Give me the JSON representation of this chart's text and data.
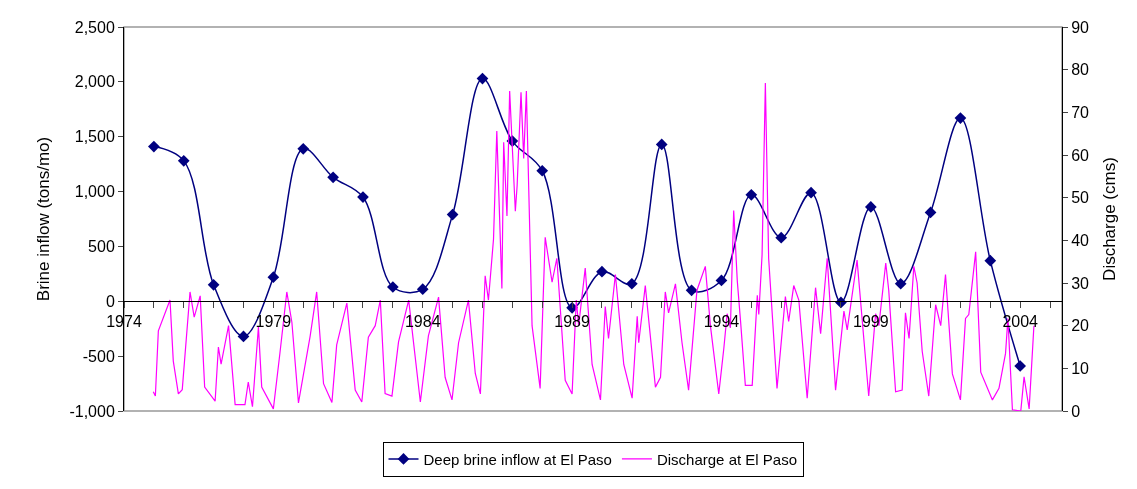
{
  "chart_data": {
    "type": "line",
    "ylabel": "Brine inflow (tons/mo)",
    "y2label": "Discharge (cms)",
    "xlim": [
      1974,
      2005.4
    ],
    "xticks": [
      1974,
      {
        "value": 1975,
        "label": null
      },
      {
        "value": 1976,
        "label": null
      },
      {
        "value": 1977,
        "label": null
      },
      {
        "value": 1978,
        "label": null
      },
      1979,
      {
        "value": 1980,
        "label": null
      },
      {
        "value": 1981,
        "label": null
      },
      {
        "value": 1982,
        "label": null
      },
      {
        "value": 1983,
        "label": null
      },
      1984,
      {
        "value": 1985,
        "label": null
      },
      {
        "value": 1986,
        "label": null
      },
      {
        "value": 1987,
        "label": null
      },
      {
        "value": 1988,
        "label": null
      },
      1989,
      {
        "value": 1990,
        "label": null
      },
      {
        "value": 1991,
        "label": null
      },
      {
        "value": 1992,
        "label": null
      },
      {
        "value": 1993,
        "label": null
      },
      1994,
      {
        "value": 1995,
        "label": null
      },
      {
        "value": 1996,
        "label": null
      },
      {
        "value": 1997,
        "label": null
      },
      {
        "value": 1998,
        "label": null
      },
      1999,
      {
        "value": 2000,
        "label": null
      },
      {
        "value": 2001,
        "label": null
      },
      {
        "value": 2002,
        "label": null
      },
      {
        "value": 2003,
        "label": null
      },
      2004,
      {
        "value": 2005,
        "label": null
      }
    ],
    "ylim": [
      -1000,
      2500
    ],
    "yticks": [
      {
        "value": -1000,
        "label": "-1,000"
      },
      {
        "value": -500,
        "label": "-500"
      },
      0,
      500,
      {
        "value": 1000,
        "label": "1,000"
      },
      {
        "value": 1500,
        "label": "1,500"
      },
      {
        "value": 2000,
        "label": "2,000"
      },
      {
        "value": 2500,
        "label": "2,500"
      }
    ],
    "y2lim": [
      0,
      90
    ],
    "y2ticks": [
      0,
      10,
      20,
      30,
      40,
      50,
      60,
      70,
      80,
      90
    ],
    "grid": false,
    "legend": "bottom",
    "series": [
      {
        "name": "Deep brine inflow at El Paso",
        "color": "#000080",
        "marker": "diamond",
        "x": [
          1975,
          1976,
          1977,
          1978,
          1979,
          1980,
          1981,
          1982,
          1983,
          1984,
          1985,
          1986,
          1987,
          1988,
          1989,
          1990,
          1991,
          1992,
          1993,
          1994,
          1995,
          1996,
          1997,
          1998,
          1999,
          2000,
          2001,
          2002,
          2003,
          2004
        ],
        "values": [
          1410,
          1280,
          150,
          -320,
          220,
          1390,
          1130,
          950,
          130,
          110,
          790,
          2030,
          1460,
          1190,
          -60,
          270,
          160,
          1430,
          100,
          190,
          970,
          580,
          990,
          -10,
          860,
          160,
          810,
          1670,
          370,
          -590
        ]
      },
      {
        "name": "Discharge at El Paso",
        "color": "#ff00ff",
        "marker": "none",
        "axis": "y2",
        "x": [
          1974.98,
          1975.05,
          1975.15,
          1975.54,
          1975.65,
          1975.82,
          1975.95,
          1976.21,
          1976.35,
          1976.55,
          1976.7,
          1977.05,
          1977.16,
          1977.25,
          1977.5,
          1977.72,
          1978.05,
          1978.16,
          1978.3,
          1978.5,
          1978.61,
          1979.0,
          1979.22,
          1979.45,
          1979.62,
          1979.84,
          1980.23,
          1980.45,
          1980.68,
          1980.96,
          1981.12,
          1981.46,
          1981.74,
          1981.96,
          1982.18,
          1982.41,
          1982.58,
          1982.74,
          1982.97,
          1983.19,
          1983.53,
          1983.92,
          1984.19,
          1984.53,
          1984.75,
          1984.98,
          1985.2,
          1985.53,
          1985.76,
          1985.93,
          1986.09,
          1986.2,
          1986.37,
          1986.48,
          1986.65,
          1986.71,
          1986.82,
          1986.91,
          1987.1,
          1987.16,
          1987.29,
          1987.38,
          1987.47,
          1987.66,
          1987.93,
          1988.1,
          1988.33,
          1988.49,
          1988.77,
          1989.0,
          1989.14,
          1989.22,
          1989.44,
          1989.67,
          1989.95,
          1990.11,
          1990.22,
          1990.45,
          1990.73,
          1991.01,
          1991.18,
          1991.23,
          1991.45,
          1991.79,
          1991.96,
          1992.12,
          1992.23,
          1992.46,
          1992.68,
          1992.9,
          1993.18,
          1993.46,
          1993.63,
          1993.91,
          1994.08,
          1994.19,
          1994.3,
          1994.41,
          1994.53,
          1994.64,
          1994.8,
          1995.03,
          1995.2,
          1995.25,
          1995.36,
          1995.47,
          1995.58,
          1995.86,
          1996.14,
          1996.25,
          1996.42,
          1996.59,
          1996.87,
          1997.15,
          1997.32,
          1997.54,
          1997.82,
          1998.1,
          1998.21,
          1998.54,
          1998.93,
          1999.16,
          1999.27,
          1999.5,
          1999.6,
          1999.83,
          2000.05,
          2000.16,
          2000.28,
          2000.44,
          2000.55,
          2000.72,
          2000.94,
          2001.17,
          2001.34,
          2001.5,
          2001.73,
          2002.0,
          2002.17,
          2002.28,
          2002.51,
          2002.68,
          2003.07,
          2003.29,
          2003.51,
          2003.59,
          2003.74,
          2004.02,
          2004.13,
          2004.3,
          2004.46
        ],
        "values": [
          4.5,
          3.5,
          18.8,
          26,
          11.7,
          4,
          5,
          27.9,
          22,
          27,
          5.6,
          2.3,
          15,
          11,
          20,
          1.5,
          1.5,
          6.8,
          1,
          19.7,
          5.6,
          0.5,
          13.6,
          27.9,
          20.8,
          1.9,
          17.5,
          27.9,
          6.4,
          2,
          15.5,
          25.3,
          4.9,
          2.1,
          17.3,
          20,
          26,
          4.1,
          3.5,
          16.2,
          26,
          2.1,
          17.6,
          26.7,
          7.9,
          2.6,
          16,
          26,
          8.8,
          4,
          31.7,
          26,
          40.3,
          65.6,
          28.7,
          63,
          45.7,
          75,
          46.8,
          52.8,
          74.7,
          59.2,
          75,
          20,
          5.3,
          40.7,
          30.2,
          35.8,
          7.2,
          4,
          26,
          20,
          33.5,
          10.9,
          2.6,
          24.5,
          17,
          32,
          10.9,
          3,
          22.2,
          16,
          29.4,
          5.6,
          7.9,
          27.9,
          23,
          29.8,
          16,
          4.9,
          28.3,
          33.9,
          20,
          4,
          14.7,
          22.8,
          19.5,
          47,
          30.5,
          21,
          6,
          6,
          27.1,
          22.6,
          36.6,
          76.9,
          35.8,
          5.3,
          26.8,
          21,
          29.4,
          26,
          3,
          28.9,
          18.1,
          35.8,
          4.9,
          23.4,
          19,
          35.4,
          3.5,
          22.8,
          20,
          34.7,
          28.3,
          4.5,
          4.9,
          23,
          17,
          33.9,
          30,
          14,
          3.5,
          24.9,
          20,
          32,
          8.7,
          2.6,
          21.7,
          22.6,
          37.3,
          9.1,
          2.6,
          5.3,
          13.5,
          21.7,
          0.3,
          0,
          8,
          0.5,
          20
        ]
      }
    ]
  }
}
